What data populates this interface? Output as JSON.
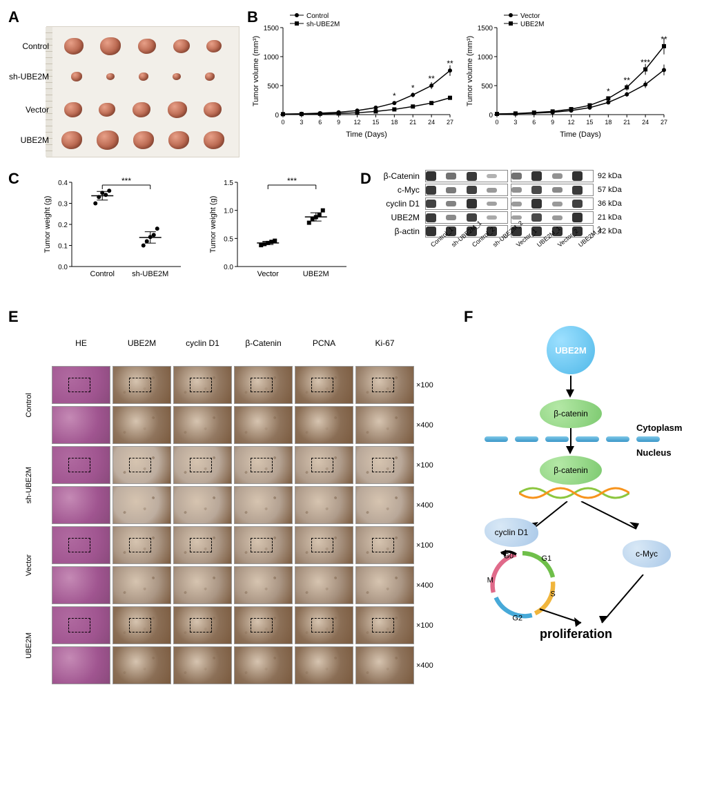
{
  "panelA": {
    "rows": [
      {
        "label": "Control",
        "sizes": [
          28,
          30,
          26,
          24,
          22
        ],
        "top": 6
      },
      {
        "label": "sh-UBE2M",
        "sizes": [
          16,
          12,
          14,
          12,
          14
        ],
        "top": 50
      },
      {
        "label": "Vector",
        "sizes": [
          26,
          24,
          26,
          28,
          26
        ],
        "top": 98
      },
      {
        "label": "UBE2M",
        "sizes": [
          30,
          32,
          30,
          30,
          30
        ],
        "top": 142
      }
    ],
    "bg_color": "#f2efe9"
  },
  "panelB": {
    "charts": [
      {
        "title_series": [
          {
            "name": "Control",
            "marker": "circle",
            "color": "#000000"
          },
          {
            "name": "sh-UBE2M",
            "marker": "square",
            "color": "#000000"
          }
        ],
        "ylabel": "Tumor volume (mm³)",
        "xlabel": "Time (Days)",
        "x_ticks": [
          0,
          3,
          6,
          9,
          12,
          15,
          18,
          21,
          24,
          27
        ],
        "y_ticks": [
          0,
          500,
          1000,
          1500
        ],
        "ylim": [
          0,
          1500
        ],
        "series": [
          {
            "name": "Control",
            "marker": "circle",
            "y": [
              10,
              15,
              25,
              40,
              70,
              120,
              200,
              340,
              500,
              760
            ]
          },
          {
            "name": "sh-UBE2M",
            "marker": "square",
            "y": [
              8,
              10,
              14,
              20,
              32,
              55,
              90,
              140,
              200,
              290
            ]
          }
        ],
        "sig": [
          {
            "x": 18,
            "t": "*"
          },
          {
            "x": 21,
            "t": "*"
          },
          {
            "x": 24,
            "t": "**"
          },
          {
            "x": 27,
            "t": "**"
          }
        ],
        "axis_color": "#000000",
        "bg": "#ffffff",
        "fontsize": 10
      },
      {
        "title_series": [
          {
            "name": "Vector",
            "marker": "circle",
            "color": "#000000"
          },
          {
            "name": "UBE2M",
            "marker": "square",
            "color": "#000000"
          }
        ],
        "ylabel": "Tumor volume (mm³)",
        "xlabel": "Time (Days)",
        "x_ticks": [
          0,
          3,
          6,
          9,
          12,
          15,
          18,
          21,
          24,
          27
        ],
        "y_ticks": [
          0,
          500,
          1000,
          1500
        ],
        "ylim": [
          0,
          1500
        ],
        "series": [
          {
            "name": "Vector",
            "marker": "circle",
            "y": [
              10,
              15,
              25,
              40,
              70,
              120,
              210,
              350,
              520,
              770
            ]
          },
          {
            "name": "UBE2M",
            "marker": "square",
            "y": [
              12,
              20,
              35,
              55,
              95,
              160,
              280,
              470,
              780,
              1180
            ]
          }
        ],
        "sig": [
          {
            "x": 18,
            "t": "*"
          },
          {
            "x": 21,
            "t": "**"
          },
          {
            "x": 24,
            "t": "***"
          },
          {
            "x": 27,
            "t": "**"
          }
        ],
        "axis_color": "#000000",
        "bg": "#ffffff",
        "fontsize": 10
      }
    ]
  },
  "panelC": {
    "plots": [
      {
        "ylabel": "Tumor weight (g)",
        "groups": [
          "Control",
          "sh-UBE2M"
        ],
        "y_ticks": [
          0.0,
          0.1,
          0.2,
          0.3,
          0.4
        ],
        "ylim": [
          0,
          0.4
        ],
        "data": [
          [
            0.3,
            0.33,
            0.35,
            0.34,
            0.36
          ],
          [
            0.1,
            0.12,
            0.14,
            0.15,
            0.18
          ]
        ],
        "means": [
          0.336,
          0.138
        ],
        "sig": "***",
        "marker": "circle",
        "color": "#000000"
      },
      {
        "ylabel": "Tumor weight (g)",
        "groups": [
          "Vector",
          "UBE2M"
        ],
        "y_ticks": [
          0.0,
          0.5,
          1.0,
          1.5
        ],
        "ylim": [
          0,
          1.5
        ],
        "data": [
          [
            0.38,
            0.4,
            0.42,
            0.44,
            0.46
          ],
          [
            0.78,
            0.84,
            0.88,
            0.92,
            1.0
          ]
        ],
        "means": [
          0.42,
          0.884
        ],
        "sig": "***",
        "marker": "square",
        "color": "#000000"
      }
    ]
  },
  "panelD": {
    "proteins": [
      "β-Catenin",
      "c-Myc",
      "cyclin D1",
      "UBE2M",
      "β-actin"
    ],
    "kda": [
      "92 kDa",
      "57 kDa",
      "36 kDa",
      "21 kDa",
      "42 kDa"
    ],
    "lanes_left": [
      "Control_1",
      "sh-UBE2M_1",
      "Control_2",
      "sh-UBE2M_2"
    ],
    "lanes_right": [
      "Vector_1",
      "UBE2M_1",
      "Vector_2",
      "UBE2M_2"
    ],
    "intensity_left": [
      [
        0.95,
        0.55,
        0.9,
        0.15
      ],
      [
        0.9,
        0.5,
        0.85,
        0.3
      ],
      [
        0.85,
        0.45,
        0.95,
        0.25
      ],
      [
        0.9,
        0.4,
        0.85,
        0.2
      ],
      [
        0.95,
        0.95,
        0.95,
        0.95
      ]
    ],
    "intensity_right": [
      [
        0.55,
        0.95,
        0.35,
        0.95
      ],
      [
        0.35,
        0.8,
        0.4,
        0.9
      ],
      [
        0.3,
        0.95,
        0.3,
        0.85
      ],
      [
        0.25,
        0.8,
        0.3,
        0.95
      ],
      [
        0.95,
        0.95,
        0.95,
        0.95
      ]
    ],
    "band_color": "#2a2a2a"
  },
  "panelE": {
    "columns": [
      "HE",
      "UBE2M",
      "cyclin D1",
      "β-Catenin",
      "PCNA",
      "Ki-67"
    ],
    "row_groups": [
      "Control",
      "sh-UBE2M",
      "Vector",
      "UBE2M"
    ],
    "magnifications": [
      "×100",
      "×400"
    ],
    "cell_colors": {
      "HE_100": "#b06aa0",
      "HE_400": "#c58ab5",
      "ihc_100": "#b89070",
      "ihc_400": "#c8a488",
      "dark": "#7a5a3e",
      "light": "#d6c4b0"
    },
    "staining_intensity": {
      "Control": {
        "UBE2M": 0.85,
        "cyclin D1": 0.8,
        "β-Catenin": 0.85,
        "PCNA": 0.9,
        "Ki-67": 0.75
      },
      "sh-UBE2M": {
        "UBE2M": 0.35,
        "cyclin D1": 0.4,
        "β-Catenin": 0.45,
        "PCNA": 0.5,
        "Ki-67": 0.4
      },
      "Vector": {
        "UBE2M": 0.55,
        "cyclin D1": 0.55,
        "β-Catenin": 0.55,
        "PCNA": 0.6,
        "Ki-67": 0.55
      },
      "UBE2M": {
        "UBE2M": 0.9,
        "cyclin D1": 0.88,
        "β-Catenin": 0.88,
        "PCNA": 0.9,
        "Ki-67": 0.85
      }
    }
  },
  "panelF": {
    "nodes": {
      "ube2m": {
        "label": "UBE2M",
        "color": "#4fb8e8",
        "text": "#ffffff"
      },
      "bcat": {
        "label": "β-catenin",
        "color": "#7cc96f",
        "text": "#000000"
      },
      "cyclind1": {
        "label": "cyclin D1",
        "color": "#a9c8e8",
        "text": "#000000"
      },
      "cmyc": {
        "label": "c-Myc",
        "color": "#a9c8e8",
        "text": "#000000"
      }
    },
    "compartments": {
      "cyto": "Cytoplasm",
      "nuc": "Nucleus"
    },
    "membrane_color": "#5fb5da",
    "cellcycle": {
      "phases": [
        "G1",
        "S",
        "G2",
        "M",
        "G0"
      ],
      "colors": {
        "G1": "#6fbf4a",
        "S": "#f0b53c",
        "G2": "#47a9d8",
        "M": "#e06a8a",
        "G0": "#777777"
      }
    },
    "outcome": "proliferation",
    "dna_colors": [
      "#8cc63f",
      "#f7941d"
    ]
  },
  "labels": {
    "A": "A",
    "B": "B",
    "C": "C",
    "D": "D",
    "E": "E",
    "F": "F"
  }
}
